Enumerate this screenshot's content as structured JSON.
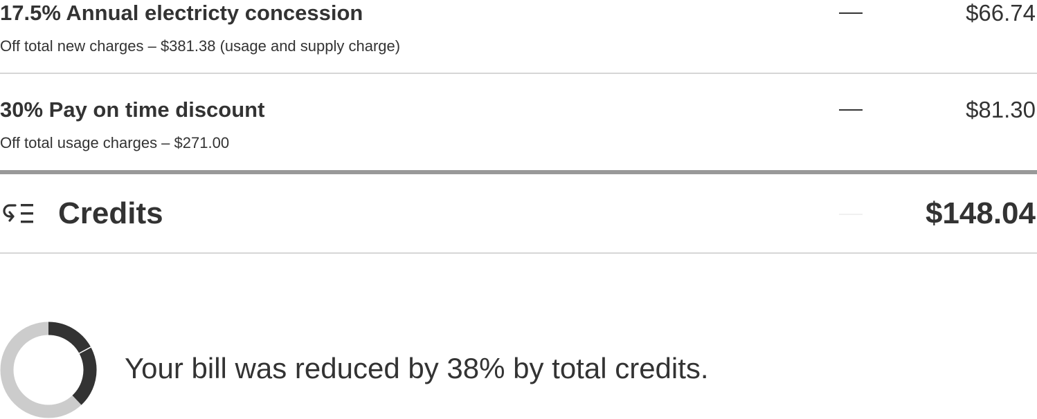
{
  "line_items": [
    {
      "title": "17.5% Annual electricty concession",
      "subtitle": "Off total new charges – $381.38 (usage and supply charge)",
      "dash": "—",
      "amount": "$66.74"
    },
    {
      "title": "30% Pay on time discount",
      "subtitle": "Off total usage charges – $271.00",
      "dash": "—",
      "amount": "$81.30"
    }
  ],
  "credits": {
    "icon": "credits-list-icon",
    "label": "Credits",
    "total": "$148.04"
  },
  "summary": {
    "prefix": "Your bill was reduced by ",
    "percent_text": "38%",
    "suffix": " by total credits.",
    "reduction_fraction": 0.38
  },
  "colors": {
    "text": "#333333",
    "donut_filled": "#333333",
    "donut_track": "#cccccc",
    "divider": "#d6d6d6",
    "divider_strong": "#999999"
  }
}
